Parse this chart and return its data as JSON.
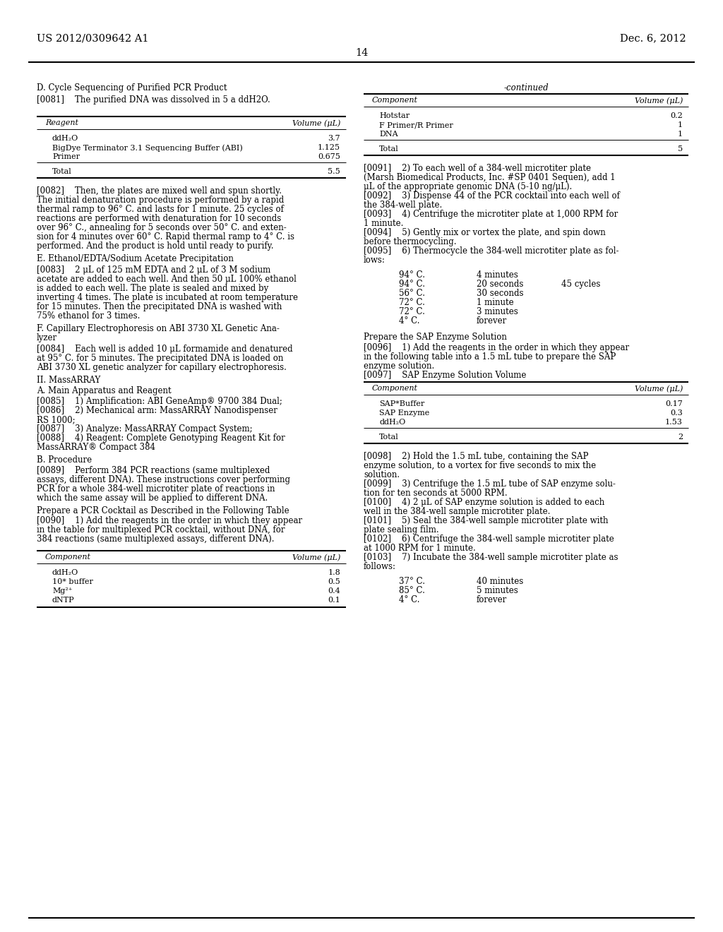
{
  "bg_color": "#ffffff",
  "header_left": "US 2012/0309642 A1",
  "header_right": "Dec. 6, 2012",
  "page_number": "14",
  "left_col": {
    "section_d": "D. Cycle Sequencing of Purified PCR Product",
    "p0081": "[0081]    The purified DNA was dissolved in 5 a ddH2O.",
    "t1_h1": "Reagent",
    "t1_h2": "Volume (μL)",
    "t1_rows": [
      [
        "ddH₂O",
        "3.7"
      ],
      [
        "BigDye Terminator 3.1 Sequencing Buffer (ABI)",
        "1.125"
      ],
      [
        "Primer",
        "0.675"
      ]
    ],
    "t1_total": [
      "Total",
      "5.5"
    ],
    "p0082_lines": [
      "[0082]    Then, the plates are mixed well and spun shortly.",
      "The initial denaturation procedure is performed by a rapid",
      "thermal ramp to 96° C. and lasts for 1 minute. 25 cycles of",
      "reactions are performed with denaturation for 10 seconds",
      "over 96° C., annealing for 5 seconds over 50° C. and exten-",
      "sion for 4 minutes over 60° C. Rapid thermal ramp to 4° C. is",
      "performed. And the product is hold until ready to purify."
    ],
    "section_e": "E. Ethanol/EDTA/Sodium Acetate Precipitation",
    "p0083_lines": [
      "[0083]    2 μL of 125 mM EDTA and 2 μL of 3 M sodium",
      "acetate are added to each well. And then 50 μL 100% ethanol",
      "is added to each well. The plate is sealed and mixed by",
      "inverting 4 times. The plate is incubated at room temperature",
      "for 15 minutes. Then the precipitated DNA is washed with",
      "75% ethanol for 3 times."
    ],
    "section_f": "F. Capillary Electrophoresis on ABI 3730 XL Genetic Ana-",
    "section_f2": "lyzer",
    "p0084_lines": [
      "[0084]    Each well is added 10 μL formamide and denatured",
      "at 95° C. for 5 minutes. The precipitated DNA is loaded on",
      "ABI 3730 XL genetic analyzer for capillary electrophoresis."
    ],
    "section_ii": "II. MassARRAY",
    "section_a": "A. Main Apparatus and Reagent",
    "p0085": "[0085]    1) Amplification: ABI GeneAmp® 9700 384 Dual;",
    "p0086_lines": [
      "[0086]    2) Mechanical arm: MassARRAY Nanodispenser",
      "RS 1000;"
    ],
    "p0087": "[0087]    3) Analyze: MassARRAY Compact System;",
    "p0088_lines": [
      "[0088]    4) Reagent: Complete Genotyping Reagent Kit for",
      "MassARRAY® Compact 384"
    ],
    "section_b": "B. Procedure",
    "p0089_lines": [
      "[0089]    Perform 384 PCR reactions (same multiplexed",
      "assays, different DNA). These instructions cover performing",
      "PCR for a whole 384-well microtiter plate of reactions in",
      "which the same assay will be applied to different DNA."
    ],
    "prepare_pcr": "Prepare a PCR Cocktail as Described in the Following Table",
    "p0090_lines": [
      "[0090]    1) Add the reagents in the order in which they appear",
      "in the table for multiplexed PCR cocktail, without DNA, for",
      "384 reactions (same multiplexed assays, different DNA)."
    ],
    "t2_h1": "Component",
    "t2_h2": "Volume (μL)",
    "t2_rows": [
      [
        "ddH₂O",
        "1.8"
      ],
      [
        "10* buffer",
        "0.5"
      ],
      [
        "Mg²⁺",
        "0.4"
      ],
      [
        "dNTP",
        "0.1"
      ]
    ]
  },
  "right_col": {
    "continued": "-continued",
    "tc_h1": "Component",
    "tc_h2": "Volume (μL)",
    "tc_rows": [
      [
        "Hotstar",
        "0.2"
      ],
      [
        "F Primer/R Primer",
        "1"
      ],
      [
        "DNA",
        "1"
      ]
    ],
    "tc_total": [
      "Total",
      "5"
    ],
    "p0091_lines": [
      "[0091]    2) To each well of a 384-well microtiter plate",
      "(Marsh Biomedical Products, Inc. #SP 0401 Sequen), add 1",
      "μL of the appropriate genomic DNA (5-10 ng/μL)."
    ],
    "p0092_lines": [
      "[0092]    3) Dispense 44 of the PCR cocktail into each well of",
      "the 384-well plate."
    ],
    "p0093_lines": [
      "[0093]    4) Centrifuge the microtiter plate at 1,000 RPM for",
      "1 minute."
    ],
    "p0094_lines": [
      "[0094]    5) Gently mix or vortex the plate, and spin down",
      "before thermocycling."
    ],
    "p0095_lines": [
      "[0095]    6) Thermocycle the 384-well microtiter plate as fol-",
      "lows:"
    ],
    "thermo_rows": [
      [
        "94° C.",
        "4 minutes",
        ""
      ],
      [
        "94° C.",
        "20 seconds",
        "45 cycles"
      ],
      [
        "56° C.",
        "30 seconds",
        ""
      ],
      [
        "72° C.",
        "1 minute",
        ""
      ],
      [
        "72° C.",
        "3 minutes",
        ""
      ],
      [
        "4° C.",
        "forever",
        ""
      ]
    ],
    "sap_title": "Prepare the SAP Enzyme Solution",
    "p0096_lines": [
      "[0096]    1) Add the reagents in the order in which they appear",
      "in the following table into a 1.5 mL tube to prepare the SAP",
      "enzyme solution."
    ],
    "p0097": "[0097]    SAP Enzyme Solution Volume",
    "ts_h1": "Component",
    "ts_h2": "Volume (μL)",
    "ts_rows": [
      [
        "SAP*Buffer",
        "0.17"
      ],
      [
        "SAP Enzyme",
        "0.3"
      ],
      [
        "ddH₂O",
        "1.53"
      ]
    ],
    "ts_total": [
      "Total",
      "2"
    ],
    "p0098_lines": [
      "[0098]    2) Hold the 1.5 mL tube, containing the SAP",
      "enzyme solution, to a vortex for five seconds to mix the",
      "solution."
    ],
    "p0099_lines": [
      "[0099]    3) Centrifuge the 1.5 mL tube of SAP enzyme solu-",
      "tion for ten seconds at 5000 RPM."
    ],
    "p0100_lines": [
      "[0100]    4) 2 μL of SAP enzyme solution is added to each",
      "well in the 384-well sample microtiter plate."
    ],
    "p0101_lines": [
      "[0101]    5) Seal the 384-well sample microtiter plate with",
      "plate sealing film."
    ],
    "p0102_lines": [
      "[0102]    6) Centrifuge the 384-well sample microtiter plate",
      "at 1000 RPM for 1 minute."
    ],
    "p0103_lines": [
      "[0103]    7) Incubate the 384-well sample microtiter plate as",
      "follows:"
    ],
    "incubate_rows": [
      [
        "37° C.",
        "40 minutes"
      ],
      [
        "85° C.",
        "5 minutes"
      ],
      [
        "4° C.",
        "forever"
      ]
    ]
  }
}
